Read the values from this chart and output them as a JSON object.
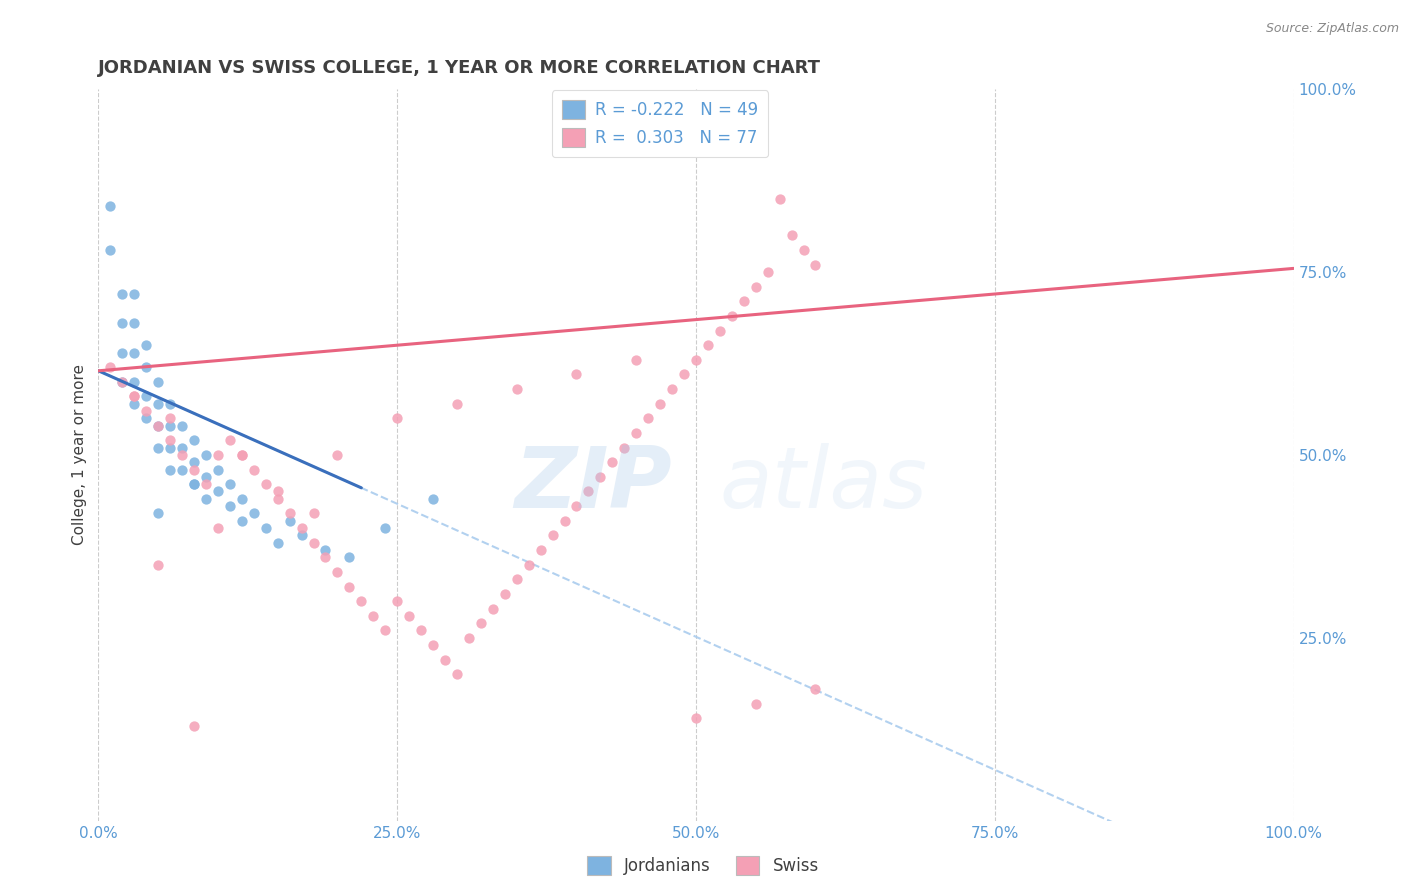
{
  "title": "JORDANIAN VS SWISS COLLEGE, 1 YEAR OR MORE CORRELATION CHART",
  "source_text": "Source: ZipAtlas.com",
  "ylabel": "College, 1 year or more",
  "xlim": [
    0.0,
    1.0
  ],
  "ylim": [
    0.0,
    1.0
  ],
  "jordanians_color": "#7eb3e0",
  "swiss_color": "#f4a0b5",
  "trend_jordan_color": "#3a6fbc",
  "trend_swiss_color": "#e8637f",
  "trend_dashed_color": "#aaccee",
  "R_jordan": -0.222,
  "N_jordan": 49,
  "R_swiss": 0.303,
  "N_swiss": 77,
  "watermark_zip": "ZIP",
  "watermark_atlas": "atlas",
  "title_fontsize": 13,
  "axis_label_fontsize": 11,
  "tick_fontsize": 11,
  "legend_fontsize": 12,
  "jordanians_x": [
    0.01,
    0.01,
    0.02,
    0.02,
    0.02,
    0.02,
    0.03,
    0.03,
    0.03,
    0.03,
    0.03,
    0.04,
    0.04,
    0.04,
    0.04,
    0.05,
    0.05,
    0.05,
    0.05,
    0.06,
    0.06,
    0.06,
    0.06,
    0.07,
    0.07,
    0.07,
    0.08,
    0.08,
    0.08,
    0.09,
    0.09,
    0.09,
    0.1,
    0.1,
    0.11,
    0.11,
    0.12,
    0.12,
    0.13,
    0.14,
    0.15,
    0.16,
    0.17,
    0.19,
    0.21,
    0.24,
    0.05,
    0.28,
    0.08
  ],
  "jordanians_y": [
    0.84,
    0.78,
    0.72,
    0.68,
    0.64,
    0.6,
    0.72,
    0.68,
    0.64,
    0.6,
    0.57,
    0.65,
    0.62,
    0.58,
    0.55,
    0.6,
    0.57,
    0.54,
    0.51,
    0.57,
    0.54,
    0.51,
    0.48,
    0.54,
    0.51,
    0.48,
    0.52,
    0.49,
    0.46,
    0.5,
    0.47,
    0.44,
    0.48,
    0.45,
    0.46,
    0.43,
    0.44,
    0.41,
    0.42,
    0.4,
    0.38,
    0.41,
    0.39,
    0.37,
    0.36,
    0.4,
    0.42,
    0.44,
    0.46
  ],
  "swiss_x": [
    0.01,
    0.02,
    0.03,
    0.04,
    0.05,
    0.06,
    0.07,
    0.08,
    0.09,
    0.1,
    0.11,
    0.12,
    0.13,
    0.14,
    0.15,
    0.16,
    0.17,
    0.18,
    0.19,
    0.2,
    0.21,
    0.22,
    0.23,
    0.24,
    0.25,
    0.26,
    0.27,
    0.28,
    0.29,
    0.3,
    0.31,
    0.32,
    0.33,
    0.34,
    0.35,
    0.36,
    0.37,
    0.38,
    0.39,
    0.4,
    0.41,
    0.42,
    0.43,
    0.44,
    0.45,
    0.46,
    0.47,
    0.48,
    0.49,
    0.5,
    0.51,
    0.52,
    0.53,
    0.54,
    0.55,
    0.56,
    0.57,
    0.58,
    0.59,
    0.6,
    0.25,
    0.3,
    0.35,
    0.4,
    0.45,
    0.2,
    0.15,
    0.1,
    0.05,
    0.08,
    0.5,
    0.55,
    0.6,
    0.03,
    0.06,
    0.12,
    0.18
  ],
  "swiss_y": [
    0.62,
    0.6,
    0.58,
    0.56,
    0.54,
    0.52,
    0.5,
    0.48,
    0.46,
    0.5,
    0.52,
    0.5,
    0.48,
    0.46,
    0.44,
    0.42,
    0.4,
    0.38,
    0.36,
    0.34,
    0.32,
    0.3,
    0.28,
    0.26,
    0.3,
    0.28,
    0.26,
    0.24,
    0.22,
    0.2,
    0.25,
    0.27,
    0.29,
    0.31,
    0.33,
    0.35,
    0.37,
    0.39,
    0.41,
    0.43,
    0.45,
    0.47,
    0.49,
    0.51,
    0.53,
    0.55,
    0.57,
    0.59,
    0.61,
    0.63,
    0.65,
    0.67,
    0.69,
    0.71,
    0.73,
    0.75,
    0.85,
    0.8,
    0.78,
    0.76,
    0.55,
    0.57,
    0.59,
    0.61,
    0.63,
    0.5,
    0.45,
    0.4,
    0.35,
    0.13,
    0.14,
    0.16,
    0.18,
    0.58,
    0.55,
    0.5,
    0.42
  ],
  "background_color": "#ffffff",
  "grid_color": "#cccccc",
  "tick_color": "#5b9bd5",
  "title_color": "#404040",
  "jordan_trend_x0": 0.0,
  "jordan_trend_y0": 0.615,
  "jordan_trend_x1": 0.22,
  "jordan_trend_y1": 0.455,
  "swiss_trend_x0": 0.0,
  "swiss_trend_y0": 0.615,
  "swiss_trend_x1": 1.0,
  "swiss_trend_y1": 0.755
}
